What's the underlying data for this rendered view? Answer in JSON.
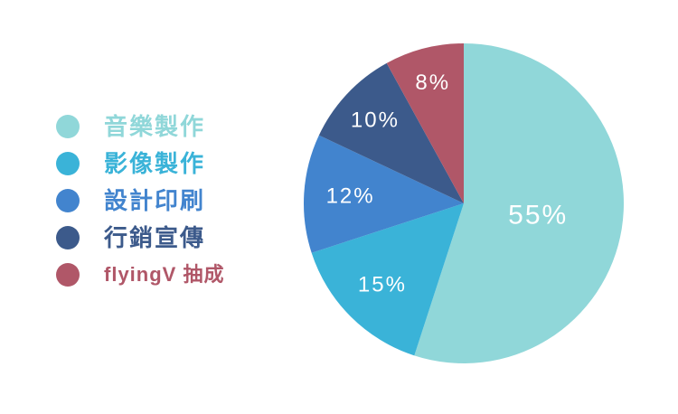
{
  "page": {
    "background": "#ffffff"
  },
  "chart_data": {
    "type": "pie",
    "title": "",
    "legend_position": "left",
    "direction": "clockwise",
    "start_angle_deg": 0,
    "grid": false,
    "value_label_color": "#ffffff",
    "slices": [
      {
        "key": "music-production",
        "label": "音樂製作",
        "value": 55,
        "value_label": "55%",
        "color": "#90d7d9",
        "label_r": 0.47,
        "label_size": 30
      },
      {
        "key": "video-production",
        "label": "影像製作",
        "value": 15,
        "value_label": "15%",
        "color": "#3ab3d8",
        "label_r": 0.72,
        "label_size": 24
      },
      {
        "key": "design-printing",
        "label": "設計印刷",
        "value": 12,
        "value_label": "12%",
        "color": "#4284ce",
        "label_r": 0.71,
        "label_size": 24
      },
      {
        "key": "marketing-promotion",
        "label": "行銷宣傳",
        "value": 10,
        "value_label": "10%",
        "color": "#3c5a8b",
        "label_r": 0.76,
        "label_size": 24
      },
      {
        "key": "flyingv-commission",
        "label": "flyingV 抽成",
        "value": 8,
        "value_label": "8%",
        "color": "#b05768",
        "label_r": 0.78,
        "label_size": 24
      }
    ]
  }
}
